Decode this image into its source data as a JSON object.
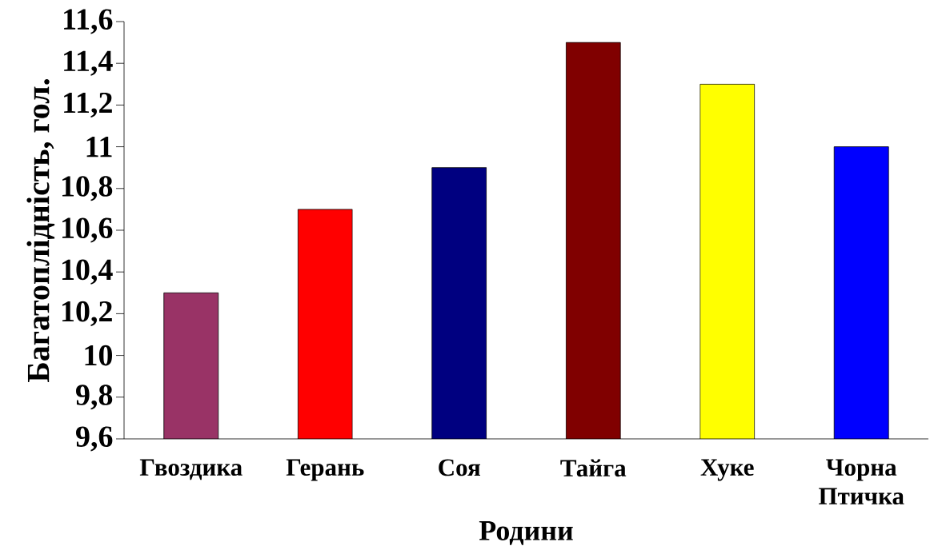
{
  "chart_data": {
    "type": "bar",
    "xlabel": "Родини",
    "ylabel": "Багатоплідність, гол.",
    "categories": [
      "Гвоздика",
      "Герань",
      "Соя",
      "Тайга",
      "Хуке",
      "Чорна Птичка"
    ],
    "values": [
      10.3,
      10.7,
      10.9,
      11.5,
      11.3,
      11.0
    ],
    "colors": [
      "#993366",
      "#ff0000",
      "#000080",
      "#800000",
      "#ffff00",
      "#0000ff"
    ],
    "ylim": [
      9.6,
      11.6
    ],
    "yticks": [
      {
        "value": 9.6,
        "label": "9,6"
      },
      {
        "value": 9.8,
        "label": "9,8"
      },
      10,
      {
        "value": 10.2,
        "label": "10,2"
      },
      {
        "value": 10.4,
        "label": "10,4"
      },
      {
        "value": 10.6,
        "label": "10,6"
      },
      {
        "value": 10.8,
        "label": "10,8"
      },
      11,
      {
        "value": 11.2,
        "label": "11,2"
      },
      {
        "value": 11.4,
        "label": "11,4"
      },
      {
        "value": 11.6,
        "label": "11,6"
      }
    ],
    "grid": false
  }
}
